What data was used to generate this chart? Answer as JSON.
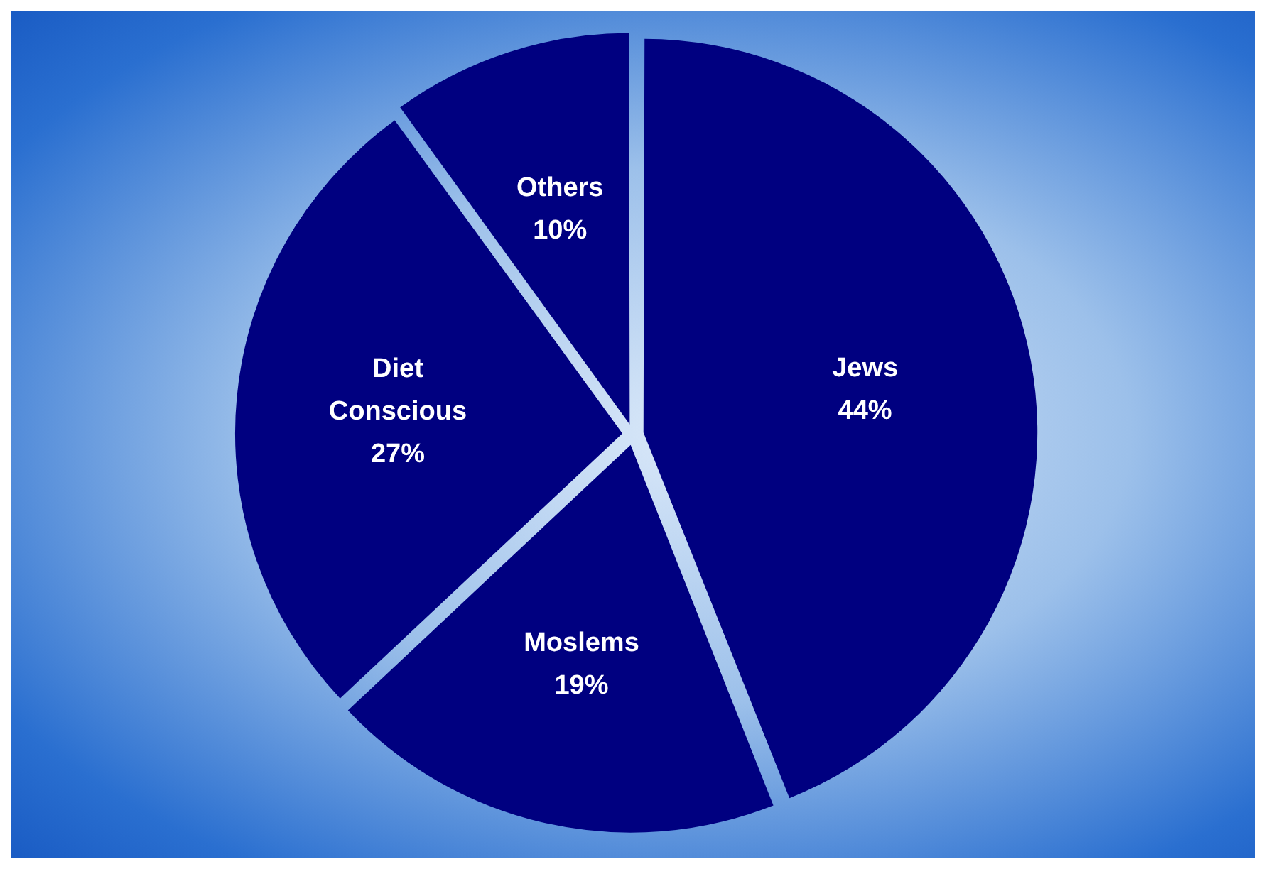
{
  "chart_data": {
    "type": "pie",
    "categories": [
      "Jews",
      "Moslems",
      "Diet Conscious",
      "Others"
    ],
    "values": [
      44,
      19,
      27,
      10
    ],
    "colors": [
      "#000080",
      "#000080",
      "#000080",
      "#000080"
    ],
    "value_labels": [
      "44%",
      "19%",
      "27%",
      "10%"
    ],
    "legend": false
  }
}
